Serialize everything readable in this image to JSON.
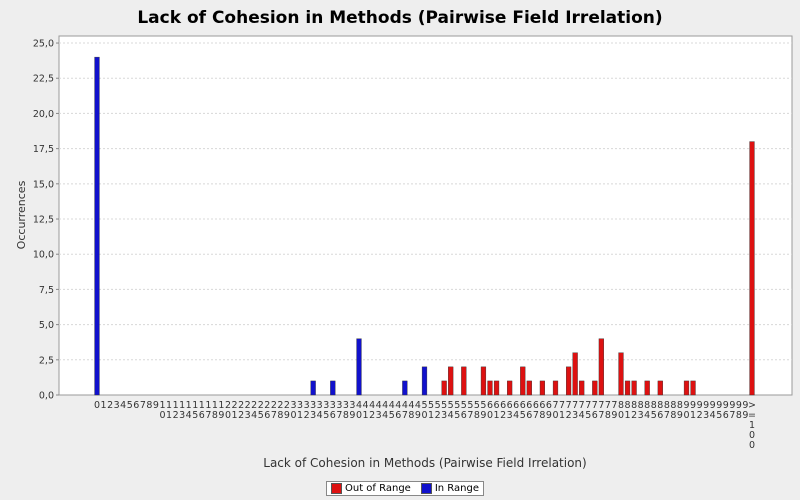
{
  "chart_data": {
    "type": "bar",
    "title": "Lack of Cohesion in Methods (Pairwise Field Irrelation)",
    "xlabel": "Lack of Cohesion in Methods (Pairwise Field Irrelation)",
    "ylabel": "Occurrences",
    "ylim": [
      0,
      25.5
    ],
    "yticks": [
      "0,0",
      "2,5",
      "5,0",
      "7,5",
      "10,0",
      "12,5",
      "15,0",
      "17,5",
      "20,0",
      "22,5",
      "25,0"
    ],
    "categories": [
      "0",
      "1",
      "2",
      "3",
      "4",
      "5",
      "6",
      "7",
      "8",
      "9",
      "10",
      "11",
      "12",
      "13",
      "14",
      "15",
      "16",
      "17",
      "18",
      "19",
      "20",
      "21",
      "22",
      "23",
      "24",
      "25",
      "26",
      "27",
      "28",
      "29",
      "30",
      "31",
      "32",
      "33",
      "34",
      "35",
      "36",
      "37",
      "38",
      "39",
      "40",
      "41",
      "42",
      "43",
      "44",
      "45",
      "46",
      "47",
      "48",
      "49",
      "50",
      "51",
      "52",
      "53",
      "54",
      "55",
      "56",
      "57",
      "58",
      "59",
      "60",
      "61",
      "62",
      "63",
      "64",
      "65",
      "66",
      "67",
      "68",
      "69",
      "70",
      "71",
      "72",
      "73",
      "74",
      "75",
      "76",
      "77",
      "78",
      "79",
      "80",
      "81",
      "82",
      "83",
      "84",
      "85",
      "86",
      "87",
      "88",
      "89",
      "90",
      "91",
      "92",
      "93",
      "94",
      "95",
      "96",
      "97",
      "98",
      "99",
      ">=100"
    ],
    "series": [
      {
        "name": "Out of Range",
        "color": "#dd1111",
        "values": [
          0,
          0,
          0,
          0,
          0,
          0,
          0,
          0,
          0,
          0,
          0,
          0,
          0,
          0,
          0,
          0,
          0,
          0,
          0,
          0,
          0,
          0,
          0,
          0,
          0,
          0,
          0,
          0,
          0,
          0,
          0,
          0,
          0,
          0,
          0,
          0,
          0,
          0,
          0,
          0,
          0,
          0,
          0,
          0,
          0,
          0,
          0,
          0,
          0,
          0,
          0,
          0,
          0,
          1,
          2,
          0,
          2,
          0,
          0,
          2,
          1,
          1,
          0,
          1,
          0,
          2,
          1,
          0,
          1,
          0,
          1,
          0,
          2,
          3,
          1,
          0,
          1,
          4,
          0,
          0,
          3,
          1,
          1,
          0,
          1,
          0,
          1,
          0,
          0,
          0,
          1,
          1,
          0,
          0,
          0,
          0,
          0,
          0,
          0,
          0,
          18
        ]
      },
      {
        "name": "In Range",
        "color": "#1111cc",
        "values": [
          24,
          0,
          0,
          0,
          0,
          0,
          0,
          0,
          0,
          0,
          0,
          0,
          0,
          0,
          0,
          0,
          0,
          0,
          0,
          0,
          0,
          0,
          0,
          0,
          0,
          0,
          0,
          0,
          0,
          0,
          0,
          0,
          0,
          1,
          0,
          0,
          1,
          0,
          0,
          0,
          4,
          0,
          0,
          0,
          0,
          0,
          0,
          1,
          0,
          0,
          2,
          0,
          0,
          0,
          0,
          0,
          0,
          0,
          0,
          0,
          0,
          0,
          0,
          0,
          0,
          0,
          0,
          0,
          0,
          0,
          0,
          0,
          0,
          0,
          0,
          0,
          0,
          0,
          0,
          0,
          0,
          0,
          0,
          0,
          0,
          0,
          0,
          0,
          0,
          0,
          0,
          0,
          0,
          0,
          0,
          0,
          0,
          0,
          0,
          0,
          0
        ]
      }
    ],
    "legend": "bottom-center",
    "grid": true
  }
}
